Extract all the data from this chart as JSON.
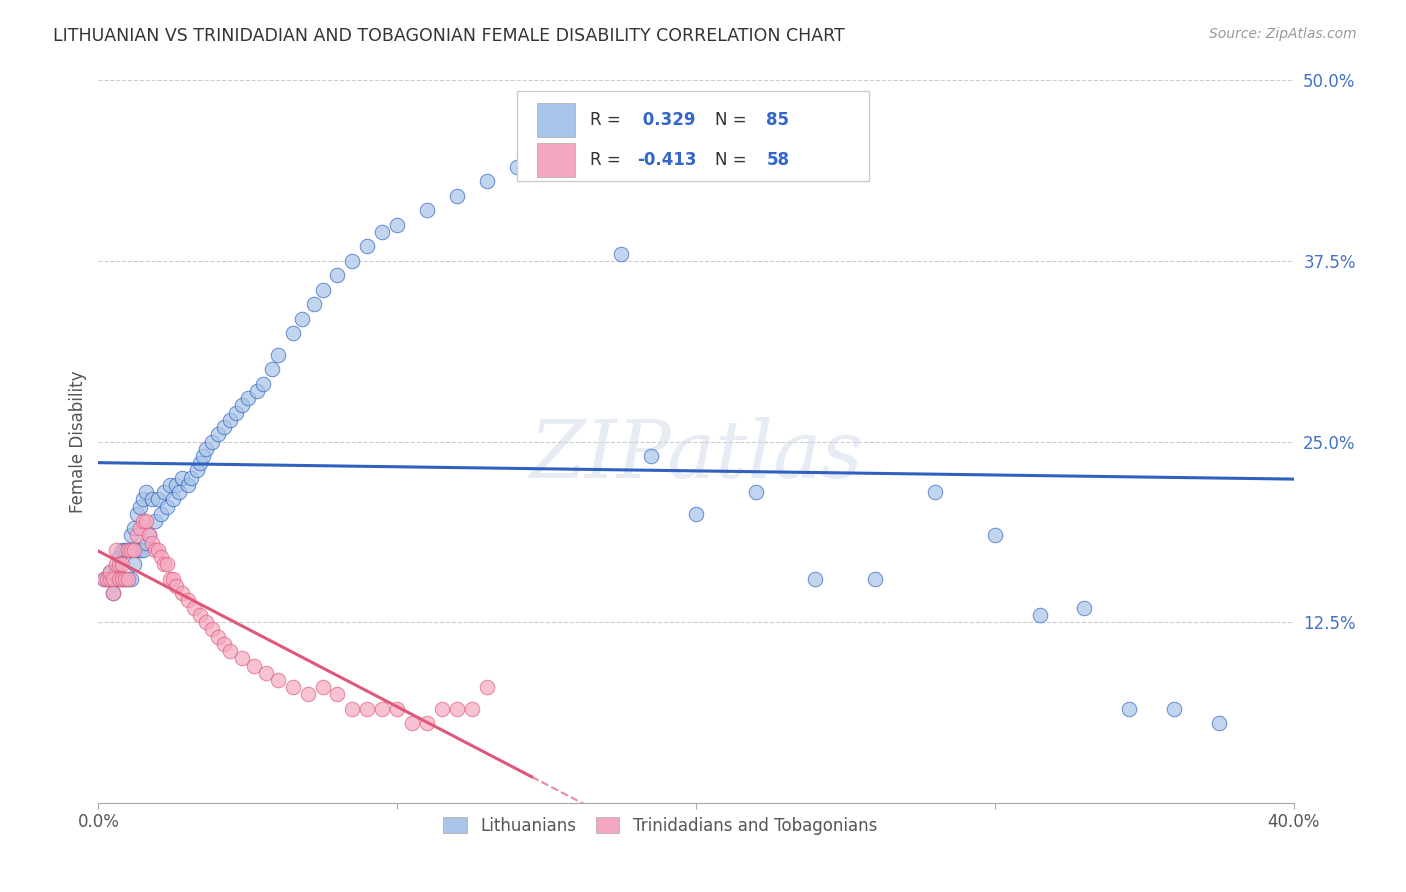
{
  "title": "LITHUANIAN VS TRINIDADIAN AND TOBAGONIAN FEMALE DISABILITY CORRELATION CHART",
  "source": "Source: ZipAtlas.com",
  "ylabel": "Female Disability",
  "x_min": 0.0,
  "x_max": 0.4,
  "y_min": 0.0,
  "y_max": 0.5,
  "x_ticks": [
    0.0,
    0.1,
    0.2,
    0.3,
    0.4
  ],
  "x_tick_labels": [
    "0.0%",
    "",
    "",
    "",
    "40.0%"
  ],
  "y_ticks": [
    0.0,
    0.125,
    0.25,
    0.375,
    0.5
  ],
  "y_tick_labels": [
    "",
    "12.5%",
    "25.0%",
    "37.5%",
    "50.0%"
  ],
  "legend_r_blue": "0.329",
  "legend_n_blue": "85",
  "legend_r_pink": "-0.413",
  "legend_n_pink": "58",
  "blue_color": "#a8c4e8",
  "pink_color": "#f4a8c0",
  "blue_line_color": "#3060c0",
  "pink_line_color": "#e05878",
  "watermark": "ZIPatlas",
  "blue_scatter_x": [
    0.002,
    0.003,
    0.004,
    0.004,
    0.005,
    0.005,
    0.006,
    0.006,
    0.007,
    0.007,
    0.008,
    0.008,
    0.009,
    0.009,
    0.01,
    0.01,
    0.011,
    0.011,
    0.012,
    0.012,
    0.013,
    0.013,
    0.014,
    0.014,
    0.015,
    0.015,
    0.016,
    0.016,
    0.017,
    0.018,
    0.019,
    0.02,
    0.021,
    0.022,
    0.023,
    0.024,
    0.025,
    0.026,
    0.027,
    0.028,
    0.03,
    0.031,
    0.033,
    0.034,
    0.035,
    0.036,
    0.038,
    0.04,
    0.042,
    0.044,
    0.046,
    0.048,
    0.05,
    0.053,
    0.055,
    0.058,
    0.06,
    0.065,
    0.068,
    0.072,
    0.075,
    0.08,
    0.085,
    0.09,
    0.095,
    0.1,
    0.11,
    0.12,
    0.13,
    0.14,
    0.155,
    0.165,
    0.175,
    0.185,
    0.2,
    0.22,
    0.24,
    0.26,
    0.28,
    0.3,
    0.315,
    0.33,
    0.345,
    0.36,
    0.375
  ],
  "blue_scatter_y": [
    0.155,
    0.155,
    0.155,
    0.16,
    0.145,
    0.155,
    0.155,
    0.16,
    0.155,
    0.17,
    0.155,
    0.175,
    0.155,
    0.175,
    0.155,
    0.175,
    0.155,
    0.185,
    0.165,
    0.19,
    0.175,
    0.2,
    0.175,
    0.205,
    0.175,
    0.21,
    0.18,
    0.215,
    0.185,
    0.21,
    0.195,
    0.21,
    0.2,
    0.215,
    0.205,
    0.22,
    0.21,
    0.22,
    0.215,
    0.225,
    0.22,
    0.225,
    0.23,
    0.235,
    0.24,
    0.245,
    0.25,
    0.255,
    0.26,
    0.265,
    0.27,
    0.275,
    0.28,
    0.285,
    0.29,
    0.3,
    0.31,
    0.325,
    0.335,
    0.345,
    0.355,
    0.365,
    0.375,
    0.385,
    0.395,
    0.4,
    0.41,
    0.42,
    0.43,
    0.44,
    0.455,
    0.465,
    0.38,
    0.24,
    0.2,
    0.215,
    0.155,
    0.155,
    0.215,
    0.185,
    0.13,
    0.135,
    0.065,
    0.065,
    0.055
  ],
  "pink_scatter_x": [
    0.002,
    0.003,
    0.004,
    0.004,
    0.005,
    0.005,
    0.006,
    0.006,
    0.007,
    0.007,
    0.008,
    0.008,
    0.009,
    0.01,
    0.01,
    0.011,
    0.012,
    0.013,
    0.014,
    0.015,
    0.016,
    0.017,
    0.018,
    0.019,
    0.02,
    0.021,
    0.022,
    0.023,
    0.024,
    0.025,
    0.026,
    0.028,
    0.03,
    0.032,
    0.034,
    0.036,
    0.038,
    0.04,
    0.042,
    0.044,
    0.048,
    0.052,
    0.056,
    0.06,
    0.065,
    0.07,
    0.075,
    0.08,
    0.085,
    0.09,
    0.095,
    0.1,
    0.105,
    0.11,
    0.115,
    0.12,
    0.125,
    0.13
  ],
  "pink_scatter_y": [
    0.155,
    0.155,
    0.155,
    0.16,
    0.145,
    0.155,
    0.165,
    0.175,
    0.155,
    0.165,
    0.155,
    0.165,
    0.155,
    0.155,
    0.175,
    0.175,
    0.175,
    0.185,
    0.19,
    0.195,
    0.195,
    0.185,
    0.18,
    0.175,
    0.175,
    0.17,
    0.165,
    0.165,
    0.155,
    0.155,
    0.15,
    0.145,
    0.14,
    0.135,
    0.13,
    0.125,
    0.12,
    0.115,
    0.11,
    0.105,
    0.1,
    0.095,
    0.09,
    0.085,
    0.08,
    0.075,
    0.08,
    0.075,
    0.065,
    0.065,
    0.065,
    0.065,
    0.055,
    0.055,
    0.065,
    0.065,
    0.065,
    0.08
  ]
}
